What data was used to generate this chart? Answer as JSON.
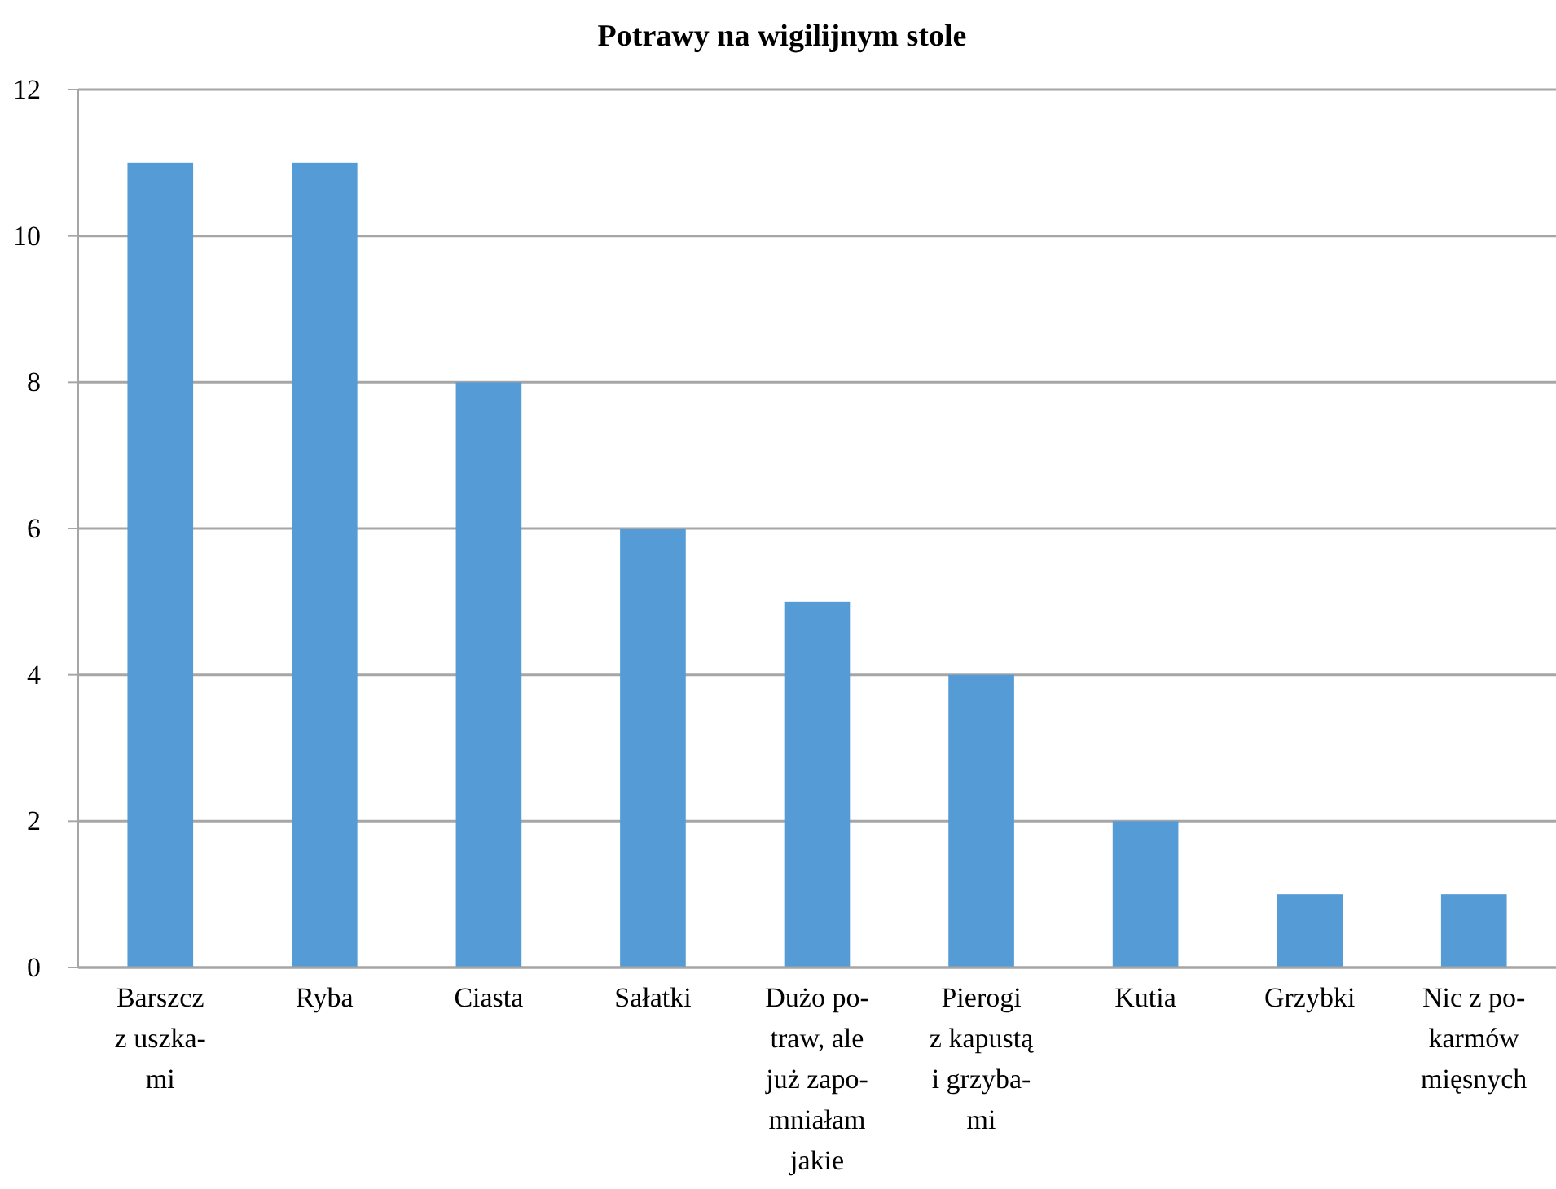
{
  "chart_data": {
    "type": "bar",
    "title": "Potrawy na wigilijnym stole",
    "categories": [
      "Barszcz\nz uszka-\nmi",
      "Ryba",
      "Ciasta",
      "Sałatki",
      "Dużo po-\ntraw, ale\njuż zapo-\nmniałam\njakie",
      "Pierogi\nz kapustą\ni grzyba-\nmi",
      "Kutia",
      "Grzybki",
      "Nic z po-\nkarmów\nmięsnych"
    ],
    "values": [
      11,
      11,
      8,
      6,
      5,
      4,
      2,
      1,
      1
    ],
    "color": "#559bd5",
    "ylim": [
      0,
      12
    ],
    "yticks": [
      0,
      2,
      4,
      6,
      8,
      10,
      12
    ],
    "grid": "y"
  }
}
